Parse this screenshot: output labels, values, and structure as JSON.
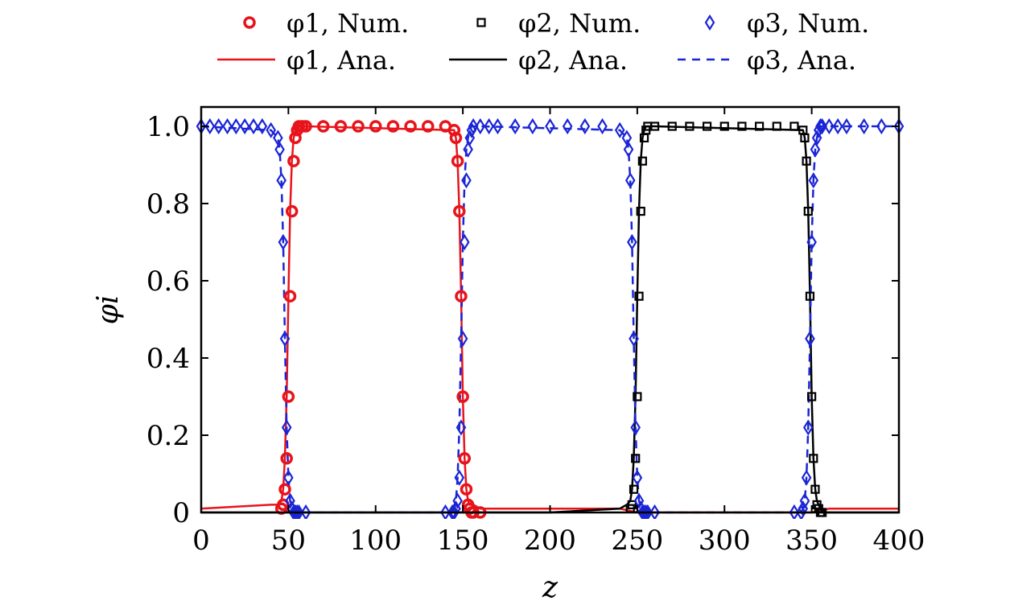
{
  "chart_data": {
    "type": "scatter",
    "xlabel": "z",
    "ylabel": "φi",
    "xlim": [
      0,
      400
    ],
    "ylim": [
      0,
      1.05
    ],
    "xticks": [
      "0",
      "50",
      "100",
      "150",
      "200",
      "250",
      "300",
      "350",
      "400"
    ],
    "yticks": [
      "0",
      "0.2",
      "0.4",
      "0.6",
      "0.8",
      "1.0"
    ],
    "grid": false,
    "legend_position": "top",
    "colors": {
      "phi1": "#e8141b",
      "phi2": "#000000",
      "phi3": "#1a25d6"
    },
    "legend": [
      {
        "label": "φ1, Num.",
        "marker": "circle",
        "color": "#e8141b"
      },
      {
        "label": "φ2, Num.",
        "marker": "square",
        "color": "#000000"
      },
      {
        "label": "φ3, Num.",
        "marker": "diamond",
        "color": "#1a25d6"
      },
      {
        "label": "φ1, Ana.",
        "line": "solid",
        "color": "#e8141b"
      },
      {
        "label": "φ2, Ana.",
        "line": "solid",
        "color": "#000000"
      },
      {
        "label": "φ3, Ana.",
        "line": "dashed",
        "color": "#1a25d6"
      }
    ],
    "series": [
      {
        "name": "φ1, Num.",
        "marker": "circle",
        "color": "#e8141b",
        "x": [
          46,
          47,
          48,
          49,
          50,
          51,
          52,
          53,
          54,
          55,
          56,
          58,
          60,
          70,
          80,
          90,
          100,
          110,
          120,
          130,
          140,
          145,
          146,
          147,
          148,
          149,
          150,
          151,
          152,
          153,
          154,
          155,
          156,
          160
        ],
        "y": [
          0.01,
          0.02,
          0.06,
          0.14,
          0.3,
          0.56,
          0.78,
          0.91,
          0.97,
          0.99,
          1.0,
          1.0,
          1.0,
          1.0,
          1.0,
          1.0,
          1.0,
          1.0,
          1.0,
          1.0,
          1.0,
          0.99,
          0.97,
          0.91,
          0.78,
          0.56,
          0.3,
          0.14,
          0.06,
          0.02,
          0.01,
          0.0,
          0.0,
          0.0
        ]
      },
      {
        "name": "φ2, Num.",
        "marker": "square",
        "color": "#000000",
        "x": [
          246,
          247,
          248,
          249,
          250,
          251,
          252,
          253,
          254,
          255,
          256,
          260,
          270,
          280,
          290,
          300,
          310,
          320,
          330,
          340,
          345,
          346,
          347,
          348,
          349,
          350,
          351,
          352,
          353,
          354,
          355,
          356
        ],
        "y": [
          0.01,
          0.02,
          0.06,
          0.14,
          0.3,
          0.56,
          0.78,
          0.91,
          0.97,
          0.99,
          1.0,
          1.0,
          1.0,
          1.0,
          1.0,
          1.0,
          1.0,
          1.0,
          1.0,
          1.0,
          0.99,
          0.97,
          0.91,
          0.78,
          0.56,
          0.3,
          0.14,
          0.06,
          0.02,
          0.01,
          0.0,
          0.0
        ]
      },
      {
        "name": "φ3, Num.",
        "marker": "diamond",
        "color": "#1a25d6",
        "x": [
          0,
          5,
          10,
          15,
          20,
          25,
          30,
          35,
          40,
          44,
          45,
          46,
          47,
          48,
          49,
          50,
          51,
          52,
          53,
          54,
          55,
          56,
          60,
          140,
          144,
          145,
          146,
          147,
          148,
          149,
          150,
          151,
          152,
          153,
          154,
          155,
          156,
          160,
          165,
          170,
          180,
          190,
          200,
          210,
          220,
          230,
          240,
          244,
          245,
          246,
          247,
          248,
          249,
          250,
          251,
          252,
          253,
          254,
          255,
          256,
          260,
          340,
          344,
          345,
          346,
          347,
          348,
          349,
          350,
          351,
          352,
          353,
          354,
          355,
          356,
          360,
          365,
          370,
          380,
          390,
          400
        ],
        "y": [
          1.0,
          1.0,
          1.0,
          1.0,
          1.0,
          1.0,
          1.0,
          1.0,
          0.99,
          0.97,
          0.94,
          0.86,
          0.7,
          0.45,
          0.22,
          0.09,
          0.03,
          0.01,
          0.0,
          0.0,
          0.0,
          0.0,
          0.0,
          0.0,
          0.0,
          0.0,
          0.01,
          0.03,
          0.09,
          0.22,
          0.45,
          0.7,
          0.86,
          0.94,
          0.97,
          0.99,
          1.0,
          1.0,
          1.0,
          1.0,
          1.0,
          1.0,
          1.0,
          1.0,
          1.0,
          1.0,
          0.99,
          0.97,
          0.94,
          0.86,
          0.7,
          0.45,
          0.22,
          0.09,
          0.03,
          0.01,
          0.0,
          0.0,
          0.0,
          0.0,
          0.0,
          0.0,
          0.0,
          0.01,
          0.03,
          0.09,
          0.22,
          0.45,
          0.7,
          0.86,
          0.94,
          0.97,
          0.99,
          1.0,
          1.0,
          1.0,
          1.0,
          1.0,
          1.0,
          1.0,
          1.0
        ]
      },
      {
        "name": "φ1, Ana.",
        "line": "solid",
        "color": "#e8141b",
        "x": [
          0,
          40,
          44,
          46,
          47,
          48,
          49,
          50,
          51,
          52,
          53,
          54,
          55,
          56,
          58,
          60,
          145,
          146,
          147,
          148,
          149,
          150,
          151,
          152,
          153,
          154,
          155,
          156,
          160,
          240,
          250,
          260,
          300,
          340,
          350,
          360,
          400
        ],
        "y": [
          0.01,
          0.02,
          0.02,
          0.03,
          0.06,
          0.14,
          0.3,
          0.56,
          0.78,
          0.91,
          0.97,
          0.99,
          1.0,
          1.0,
          1.0,
          1.0,
          0.99,
          0.97,
          0.91,
          0.78,
          0.56,
          0.3,
          0.14,
          0.06,
          0.03,
          0.02,
          0.02,
          0.02,
          0.01,
          0.01,
          0.0,
          0.0,
          0.0,
          0.0,
          0.0,
          0.01,
          0.01
        ]
      },
      {
        "name": "φ2, Ana.",
        "line": "solid",
        "color": "#000000",
        "x": [
          0,
          50,
          100,
          150,
          200,
          240,
          244,
          246,
          247,
          248,
          249,
          250,
          251,
          252,
          253,
          254,
          255,
          256,
          260,
          345,
          346,
          347,
          348,
          349,
          350,
          351,
          352,
          353,
          354,
          355,
          356,
          360,
          400
        ],
        "y": [
          0.0,
          0.0,
          0.0,
          0.0,
          0.0,
          0.01,
          0.02,
          0.03,
          0.06,
          0.14,
          0.3,
          0.56,
          0.78,
          0.91,
          0.97,
          0.99,
          1.0,
          1.0,
          1.0,
          0.99,
          0.97,
          0.91,
          0.78,
          0.56,
          0.3,
          0.14,
          0.06,
          0.03,
          0.02,
          0.01,
          0.0,
          0.0,
          0.0
        ]
      },
      {
        "name": "φ3, Ana.",
        "line": "dashed",
        "color": "#1a25d6",
        "x": [
          0,
          40,
          44,
          45,
          46,
          47,
          48,
          49,
          50,
          51,
          52,
          53,
          54,
          56,
          60,
          140,
          144,
          145,
          146,
          147,
          148,
          149,
          150,
          151,
          152,
          153,
          154,
          155,
          156,
          160,
          240,
          244,
          245,
          246,
          247,
          248,
          249,
          250,
          251,
          252,
          253,
          254,
          256,
          260,
          340,
          344,
          345,
          346,
          347,
          348,
          349,
          350,
          351,
          352,
          353,
          354,
          355,
          356,
          360,
          400
        ],
        "y": [
          1.0,
          0.99,
          0.97,
          0.94,
          0.86,
          0.7,
          0.45,
          0.22,
          0.09,
          0.03,
          0.01,
          0.0,
          0.0,
          0.0,
          0.0,
          0.0,
          0.0,
          0.01,
          0.03,
          0.09,
          0.22,
          0.45,
          0.7,
          0.86,
          0.94,
          0.97,
          0.99,
          1.0,
          1.0,
          1.0,
          0.99,
          0.97,
          0.94,
          0.86,
          0.7,
          0.45,
          0.22,
          0.09,
          0.03,
          0.01,
          0.0,
          0.0,
          0.0,
          0.0,
          0.0,
          0.0,
          0.01,
          0.03,
          0.09,
          0.22,
          0.45,
          0.7,
          0.86,
          0.94,
          0.97,
          0.99,
          1.0,
          1.0,
          1.0,
          1.0
        ]
      }
    ]
  }
}
